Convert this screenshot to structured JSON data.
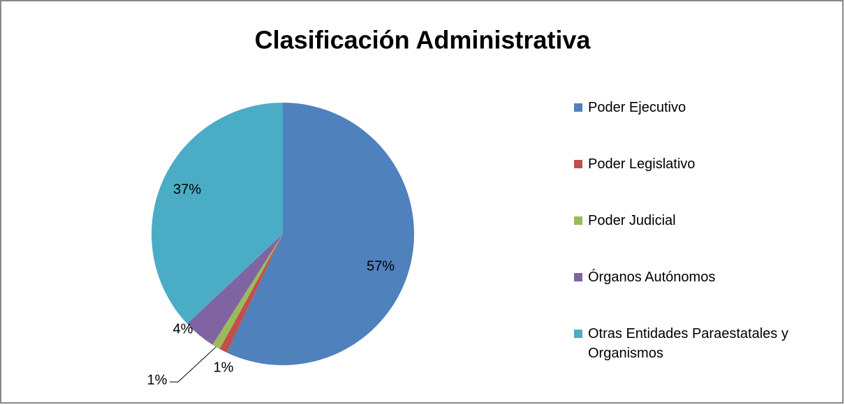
{
  "chart_data": {
    "type": "pie",
    "title": "Clasificación Administrativa",
    "categories": [
      "Poder Ejecutivo",
      "Poder Legislativo",
      "Poder Judicial",
      "Órganos Autónomos",
      "Otras Entidades Paraestatales y Organismos"
    ],
    "values": [
      57,
      1,
      1,
      4,
      37
    ],
    "value_labels": [
      "57%",
      "1%",
      "1%",
      "4%",
      "37%"
    ],
    "colors": [
      "#4f81bd",
      "#c0504d",
      "#9bbb59",
      "#8064a2",
      "#4bacc6"
    ],
    "legend": "right"
  }
}
